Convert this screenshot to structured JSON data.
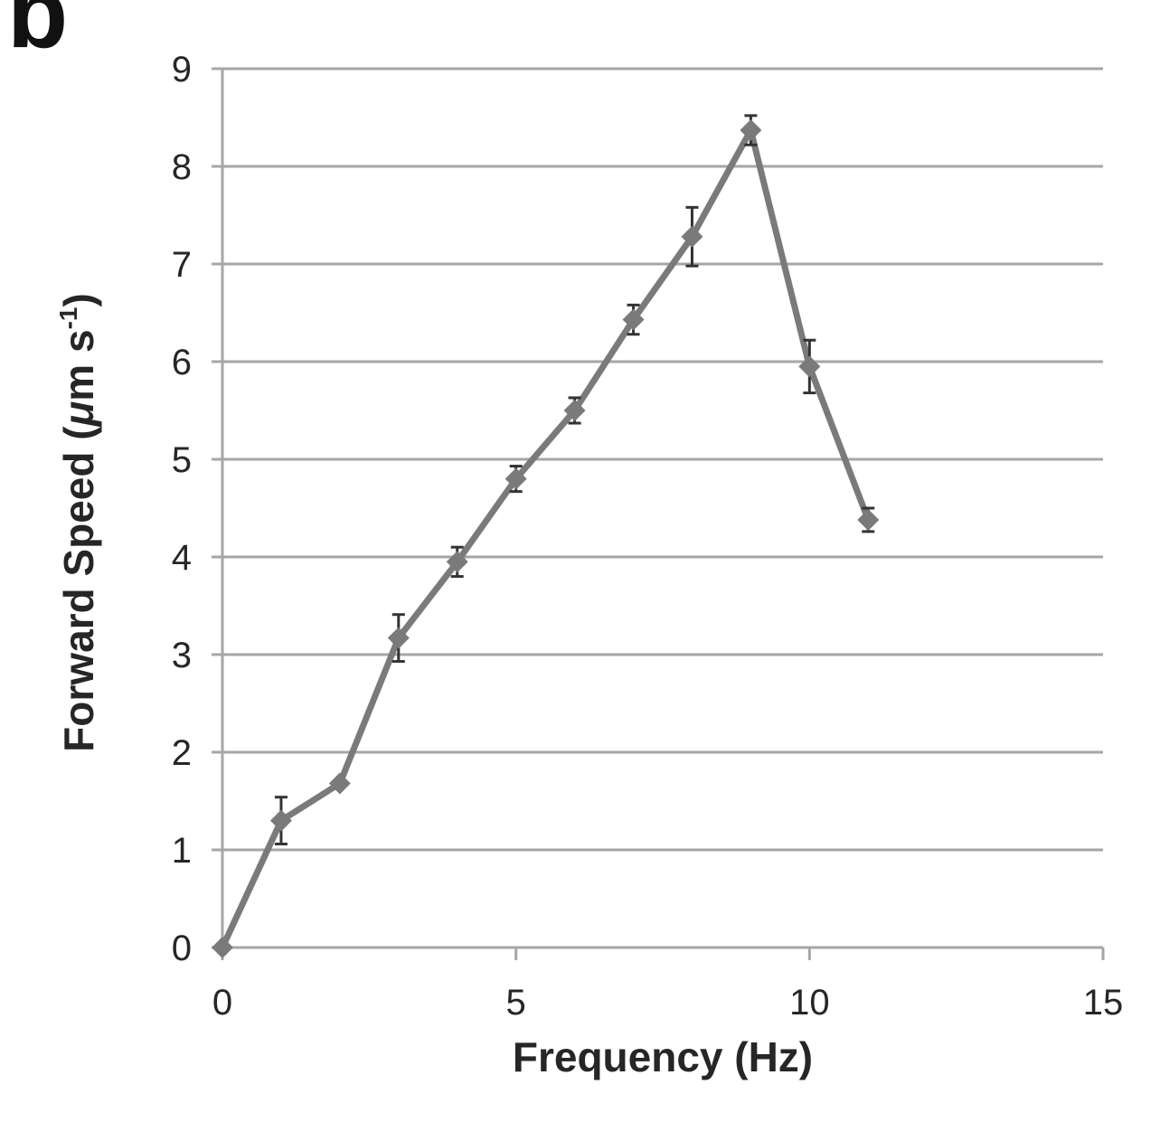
{
  "panel_label": "b",
  "colors": {
    "grid": "#a6a6a6",
    "axis": "#a6a6a6",
    "series": "#7a7a7a",
    "errorbar": "#333333",
    "text": "#262626"
  },
  "chart_data": {
    "type": "line",
    "title": "",
    "xlabel": "Frequency (Hz)",
    "ylabel_main": "Forward Speed (",
    "ylabel_mu": "μ",
    "ylabel_unit": "m s",
    "ylabel_sup": "-1",
    "ylabel_close": ")",
    "xlim": [
      0,
      15
    ],
    "ylim": [
      0,
      9
    ],
    "xticks": [
      0,
      5,
      10,
      15
    ],
    "yticks": [
      0,
      1,
      2,
      3,
      4,
      5,
      6,
      7,
      8,
      9
    ],
    "grid": "horizontal",
    "marker": "diamond",
    "series": [
      {
        "x": [
          0,
          1,
          2,
          3,
          4,
          5,
          6,
          7,
          8,
          9,
          10,
          11
        ],
        "y": [
          0,
          1.3,
          1.68,
          3.17,
          3.95,
          4.8,
          5.5,
          6.43,
          7.28,
          8.37,
          5.95,
          4.38
        ],
        "err": [
          0,
          0.24,
          0,
          0.24,
          0.15,
          0.13,
          0.13,
          0.15,
          0.3,
          0.15,
          0.27,
          0.12
        ]
      }
    ]
  }
}
